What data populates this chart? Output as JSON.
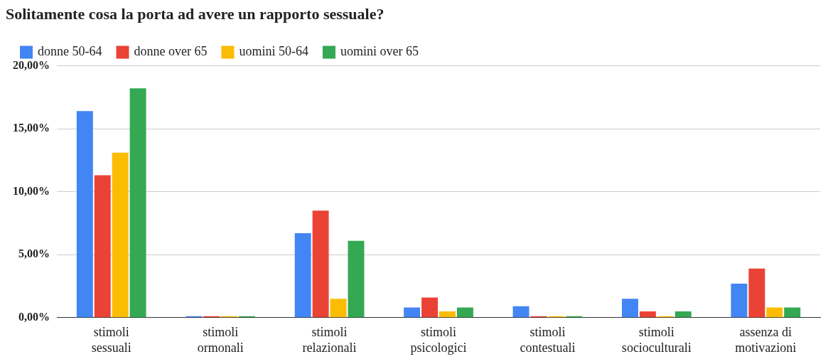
{
  "chart_data": {
    "type": "bar",
    "title": "Solitamente cosa la porta ad avere un rapporto sessuale?",
    "categories": [
      "stimoli sessuali",
      "stimoli ormonali",
      "stimoli relazionali",
      "stimoli psicologici",
      "stimoli contestuali",
      "stimoli socioculturali",
      "assenza di motivazioni"
    ],
    "series": [
      {
        "name": "donne 50-64",
        "color": "#4285f4",
        "values": [
          16.4,
          0,
          6.7,
          0.8,
          0.9,
          1.5,
          2.7
        ]
      },
      {
        "name": "donne over 65",
        "color": "#ea4335",
        "values": [
          11.3,
          0,
          8.5,
          1.6,
          0,
          0.5,
          3.9
        ]
      },
      {
        "name": "uomini 50-64",
        "color": "#fbbc04",
        "values": [
          13.1,
          0,
          1.5,
          0.5,
          0,
          0,
          0.8
        ]
      },
      {
        "name": "uomini over 65",
        "color": "#34a853",
        "values": [
          18.2,
          0,
          6.1,
          0.8,
          0,
          0.5,
          0.8
        ]
      }
    ],
    "ylim": [
      0,
      20
    ],
    "yticks": [
      {
        "value": 0,
        "label": "0,00%"
      },
      {
        "value": 5,
        "label": "5,00%"
      },
      {
        "value": 10,
        "label": "10,00%"
      },
      {
        "value": 15,
        "label": "15,00%"
      },
      {
        "value": 20,
        "label": "20,00%"
      }
    ],
    "grid": "y",
    "legend": "top"
  }
}
